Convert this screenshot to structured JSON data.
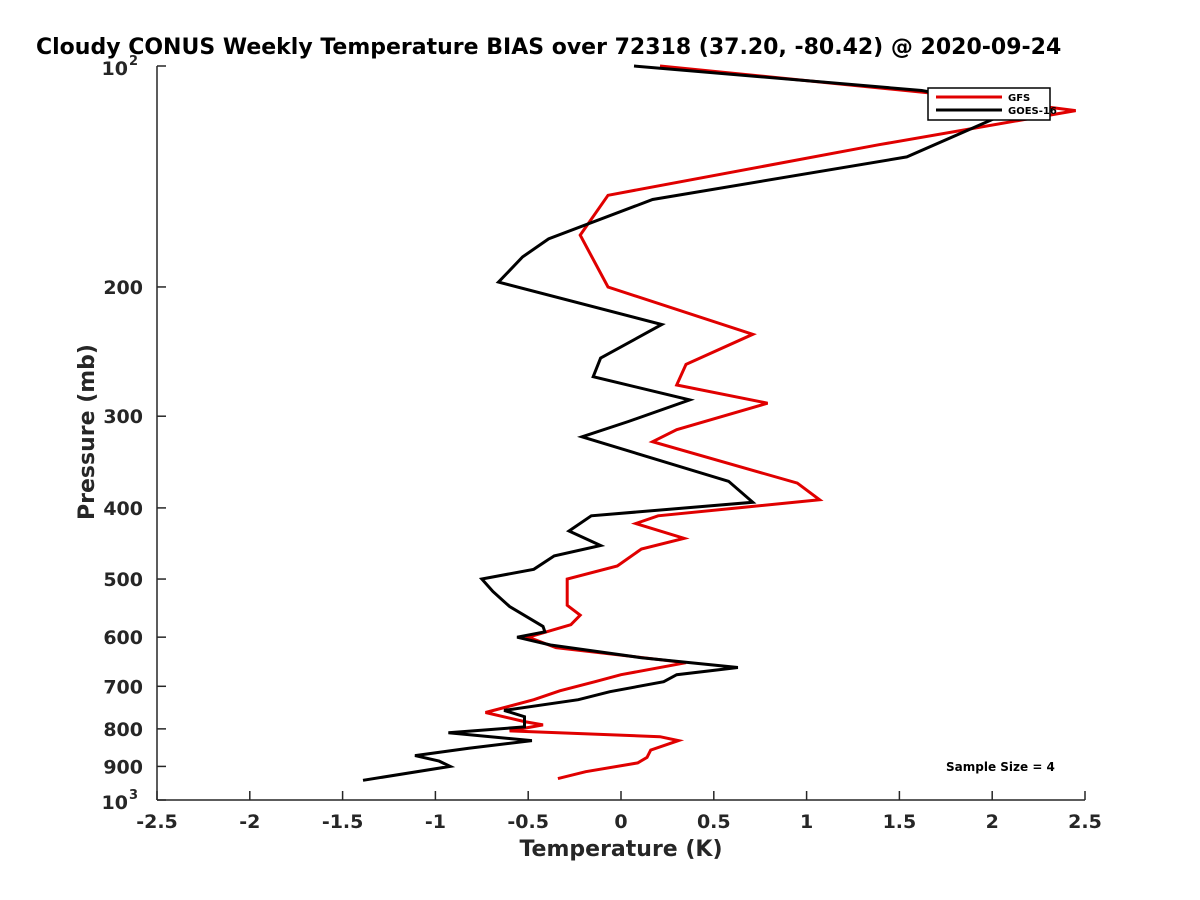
{
  "chart_data": {
    "type": "line",
    "title": "Cloudy CONUS Weekly Temperature BIAS over 72318 (37.20, -80.42) @ 2020-09-24",
    "xlabel": "Temperature (K)",
    "ylabel": "Pressure (mb)",
    "xlim": [
      -2.5,
      2.5
    ],
    "ylim": [
      100,
      1000
    ],
    "yscale": "log",
    "yreversed": true,
    "grid": false,
    "legend_placement": "top-right",
    "x_ticks": [
      -2.5,
      -2,
      -1.5,
      -1,
      -0.5,
      0,
      0.5,
      1,
      1.5,
      2,
      2.5
    ],
    "x_tick_labels": [
      "-2.5",
      "-2",
      "-1.5",
      "-1",
      "-0.5",
      "0",
      "0.5",
      "1",
      "1.5",
      "2",
      "2.5"
    ],
    "y_ticks": [
      200,
      300,
      400,
      500,
      600,
      700,
      800,
      900
    ],
    "y_tick_labels": [
      "200",
      "300",
      "400",
      "500",
      "600",
      "700",
      "800",
      "900"
    ],
    "y_end_labels": {
      "top": {
        "base": "10",
        "exp": "2",
        "value": 100
      },
      "bottom": {
        "base": "10",
        "exp": "3",
        "value": 1000
      }
    },
    "annotation": "Sample Size = 4",
    "series": [
      {
        "name": "GFS",
        "color": "#e00000",
        "points": [
          [
            0.21,
            100
          ],
          [
            1.85,
            110
          ],
          [
            2.45,
            115
          ],
          [
            1.39,
            128
          ],
          [
            -0.07,
            150
          ],
          [
            -0.22,
            170
          ],
          [
            -0.07,
            200
          ],
          [
            0.71,
            232
          ],
          [
            0.35,
            255
          ],
          [
            0.3,
            272
          ],
          [
            0.79,
            288
          ],
          [
            0.3,
            313
          ],
          [
            0.17,
            325
          ],
          [
            0.95,
            370
          ],
          [
            1.07,
            390
          ],
          [
            0.2,
            410
          ],
          [
            0.08,
            420
          ],
          [
            0.34,
            440
          ],
          [
            0.11,
            455
          ],
          [
            -0.02,
            480
          ],
          [
            -0.29,
            500
          ],
          [
            -0.29,
            543
          ],
          [
            -0.22,
            560
          ],
          [
            -0.27,
            577
          ],
          [
            -0.5,
            600
          ],
          [
            -0.35,
            620
          ],
          [
            0.35,
            650
          ],
          [
            0.0,
            675
          ],
          [
            -0.14,
            690
          ],
          [
            -0.33,
            710
          ],
          [
            -0.47,
            730
          ],
          [
            -0.73,
            760
          ],
          [
            -0.52,
            782
          ],
          [
            -0.42,
            790
          ],
          [
            -0.6,
            805
          ],
          [
            0.21,
            820
          ],
          [
            0.31,
            830
          ],
          [
            0.16,
            855
          ],
          [
            0.14,
            875
          ],
          [
            0.09,
            890
          ],
          [
            -0.19,
            915
          ],
          [
            -0.34,
            935
          ]
        ]
      },
      {
        "name": "GOES-16",
        "color": "#000000",
        "points": [
          [
            0.07,
            100
          ],
          [
            1.62,
            108
          ],
          [
            1.97,
            112
          ],
          [
            2.11,
            115
          ],
          [
            1.54,
            133
          ],
          [
            0.17,
            152
          ],
          [
            -0.39,
            172
          ],
          [
            -0.53,
            182
          ],
          [
            -0.66,
            197
          ],
          [
            0.22,
            225
          ],
          [
            -0.11,
            250
          ],
          [
            -0.15,
            265
          ],
          [
            0.37,
            285
          ],
          [
            0.04,
            305
          ],
          [
            -0.21,
            320
          ],
          [
            0.58,
            368
          ],
          [
            0.71,
            393
          ],
          [
            -0.16,
            410
          ],
          [
            -0.28,
            430
          ],
          [
            -0.11,
            450
          ],
          [
            -0.36,
            465
          ],
          [
            -0.47,
            485
          ],
          [
            -0.75,
            500
          ],
          [
            -0.69,
            520
          ],
          [
            -0.6,
            545
          ],
          [
            -0.42,
            580
          ],
          [
            -0.41,
            590
          ],
          [
            -0.56,
            600
          ],
          [
            -0.38,
            615
          ],
          [
            0.11,
            640
          ],
          [
            0.63,
            660
          ],
          [
            0.3,
            675
          ],
          [
            0.23,
            690
          ],
          [
            -0.06,
            712
          ],
          [
            -0.23,
            730
          ],
          [
            -0.63,
            755
          ],
          [
            -0.52,
            770
          ],
          [
            -0.52,
            795
          ],
          [
            -0.93,
            810
          ],
          [
            -0.48,
            830
          ],
          [
            -0.82,
            850
          ],
          [
            -1.11,
            870
          ],
          [
            -0.98,
            885
          ],
          [
            -0.92,
            900
          ],
          [
            -1.39,
            940
          ]
        ]
      }
    ]
  }
}
